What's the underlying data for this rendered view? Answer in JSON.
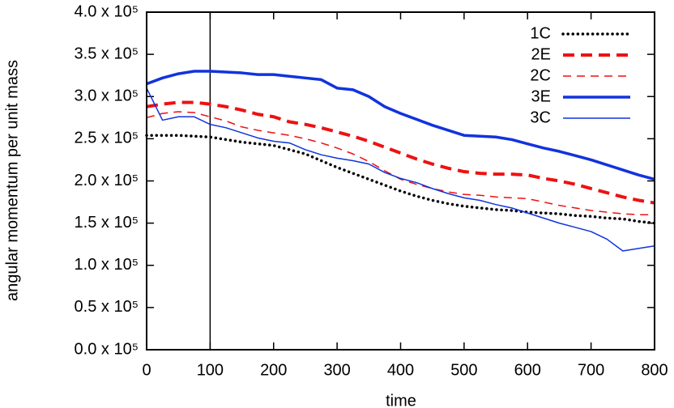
{
  "chart_data": {
    "type": "line",
    "x_label": "time",
    "y_label": "angular momentum per unit mass",
    "x": [
      0,
      25,
      50,
      75,
      100,
      125,
      150,
      175,
      200,
      225,
      250,
      275,
      300,
      325,
      350,
      375,
      400,
      425,
      450,
      475,
      500,
      525,
      550,
      575,
      600,
      625,
      650,
      675,
      700,
      725,
      750,
      775,
      800
    ],
    "series": [
      {
        "name": "1C",
        "color": "#000000",
        "values": [
          254000,
          254000,
          254000,
          253000,
          252000,
          249000,
          246000,
          244000,
          242000,
          237000,
          232000,
          224000,
          216000,
          209000,
          202000,
          195000,
          188000,
          182000,
          177000,
          173000,
          170000,
          168000,
          166000,
          165000,
          163000,
          162000,
          161000,
          159000,
          158000,
          156000,
          155000,
          152000,
          150000
        ]
      },
      {
        "name": "2E",
        "color": "#ee1111",
        "values": [
          288000,
          291000,
          293000,
          293000,
          291000,
          288000,
          284000,
          279000,
          276000,
          270000,
          267000,
          263000,
          258000,
          253000,
          247000,
          240000,
          233000,
          226000,
          220000,
          215000,
          211000,
          209000,
          208000,
          208000,
          207000,
          203000,
          200000,
          196000,
          191000,
          186000,
          181000,
          177000,
          174000
        ]
      },
      {
        "name": "2C",
        "color": "#ee1111",
        "values": [
          275000,
          280000,
          282000,
          281000,
          276000,
          271000,
          264000,
          260000,
          257000,
          254000,
          250000,
          245000,
          239000,
          232000,
          223000,
          212000,
          202000,
          196000,
          191000,
          187000,
          184000,
          183000,
          181000,
          180000,
          179000,
          175000,
          171000,
          168000,
          165000,
          163000,
          161000,
          160000,
          160000
        ]
      },
      {
        "name": "3E",
        "color": "#1133dd",
        "values": [
          315000,
          322000,
          327000,
          330000,
          330000,
          329000,
          328000,
          326000,
          326000,
          324000,
          322000,
          320000,
          310000,
          308000,
          300000,
          288000,
          280000,
          273000,
          266000,
          260000,
          254000,
          253000,
          252000,
          249000,
          244000,
          239000,
          235000,
          230000,
          225000,
          219000,
          213000,
          207000,
          202000
        ]
      },
      {
        "name": "3C",
        "color": "#1133dd",
        "values": [
          310000,
          272000,
          276000,
          276000,
          267000,
          263000,
          257000,
          251000,
          247000,
          245000,
          237000,
          231000,
          227000,
          224000,
          220000,
          210000,
          203000,
          198000,
          191000,
          185000,
          180000,
          177000,
          172000,
          168000,
          162000,
          156000,
          150000,
          145000,
          140000,
          131000,
          117000,
          120000,
          123000
        ]
      }
    ],
    "xlim": [
      0,
      800
    ],
    "xticks": [
      0,
      100,
      200,
      300,
      400,
      500,
      600,
      700,
      800
    ],
    "ylim": [
      0,
      400000
    ],
    "yticks": [
      {
        "value": 0,
        "label": "0.0 x 10⁵"
      },
      {
        "value": 50000,
        "label": "0.5 x 10⁵"
      },
      {
        "value": 100000,
        "label": "1.0 x 10⁵"
      },
      {
        "value": 150000,
        "label": "1.5 x 10⁵"
      },
      {
        "value": 200000,
        "label": "2.0 x 10⁵"
      },
      {
        "value": 250000,
        "label": "2.5 x 10⁵"
      },
      {
        "value": 300000,
        "label": "3.0 x 10⁵"
      },
      {
        "value": 350000,
        "label": "3.5 x 10⁵"
      },
      {
        "value": 400000,
        "label": "4.0 x 10⁵"
      }
    ],
    "vlines": [
      100
    ],
    "legend": "top-right",
    "grid": false
  }
}
